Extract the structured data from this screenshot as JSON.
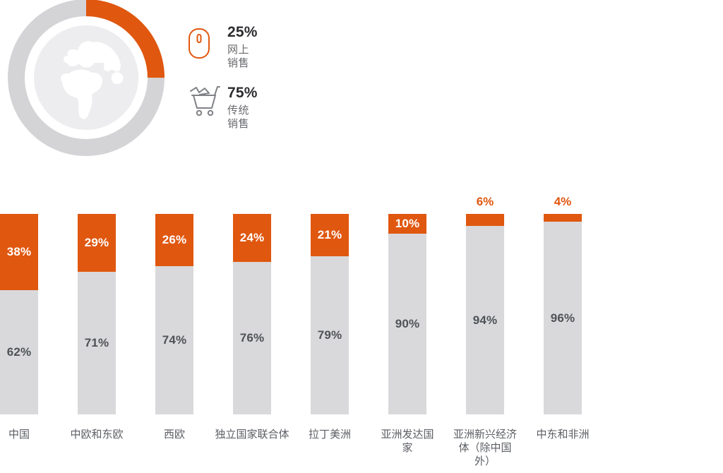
{
  "colors": {
    "accent_orange": "#e0570f",
    "bar_gray": "#d9d9db",
    "ring_gray": "#d4d4d7",
    "globe_disc_gray": "#ededef",
    "category_text": "#5b5e63",
    "value_text_dark": "#4f5256",
    "legend_value_text": "#2d2d31",
    "legend_label_text": "#6a6b6f",
    "cart_icon_gray": "#808286"
  },
  "legend": {
    "items": [
      {
        "icon": "mouse-icon",
        "value": "25%",
        "label": "网上销售"
      },
      {
        "icon": "shopping-cart-icon",
        "value": "75%",
        "label": "传统销售"
      }
    ]
  },
  "chart_data": [
    {
      "type": "pie",
      "subtype": "donut",
      "labels": [
        "网上销售",
        "传统销售"
      ],
      "values": [
        25,
        75
      ],
      "colors": [
        "#e0570f",
        "#d4d4d7"
      ],
      "start_angle_deg": 0,
      "direction": "clockwise",
      "center_icon": "globe",
      "legend_position": "right"
    },
    {
      "type": "bar",
      "subtype": "stacked-100-percent-vertical",
      "categories": [
        "中国",
        "中欧和东欧",
        "西欧",
        "独立国家联合体",
        "拉丁美洲",
        "亚洲发达国\n家",
        "亚洲新兴经济\n体（除中国\n外）",
        "中东和非洲"
      ],
      "series": [
        {
          "name": "网上销售",
          "color": "#e0570f",
          "values": [
            38,
            29,
            26,
            24,
            21,
            10,
            6,
            4
          ]
        },
        {
          "name": "传统销售",
          "color": "#d9d9db",
          "values": [
            62,
            71,
            74,
            76,
            79,
            90,
            94,
            96
          ]
        }
      ],
      "value_suffix": "%",
      "ylim": [
        0,
        100
      ],
      "grid": false,
      "axis_labels_visible": false,
      "small_segment_label_threshold_pct": 8
    }
  ]
}
